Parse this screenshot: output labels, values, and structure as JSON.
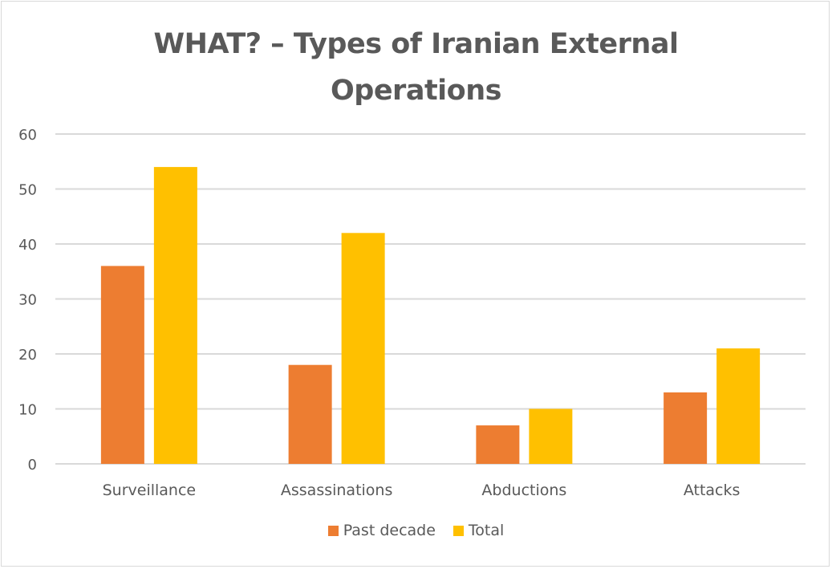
{
  "chart_data": {
    "type": "bar",
    "title_lines": [
      "WHAT? – Types of Iranian External",
      "Operations"
    ],
    "categories": [
      "Surveillance",
      "Assassinations",
      "Abductions",
      "Attacks"
    ],
    "series": [
      {
        "name": "Past decade",
        "color": "#ed7d31",
        "values": [
          36,
          18,
          7,
          13
        ]
      },
      {
        "name": "Total",
        "color": "#ffc000",
        "values": [
          54,
          42,
          10,
          21
        ]
      }
    ],
    "ylim": [
      0,
      60
    ],
    "yticks": [
      "0",
      "10",
      "20",
      "30",
      "40",
      "50",
      "60"
    ],
    "xlabel": "",
    "ylabel": "",
    "grid": true,
    "legend_position": "bottom"
  },
  "colors": {
    "gridline": "#d9d9d9",
    "text": "#595959",
    "border": "#d9d9d9"
  }
}
